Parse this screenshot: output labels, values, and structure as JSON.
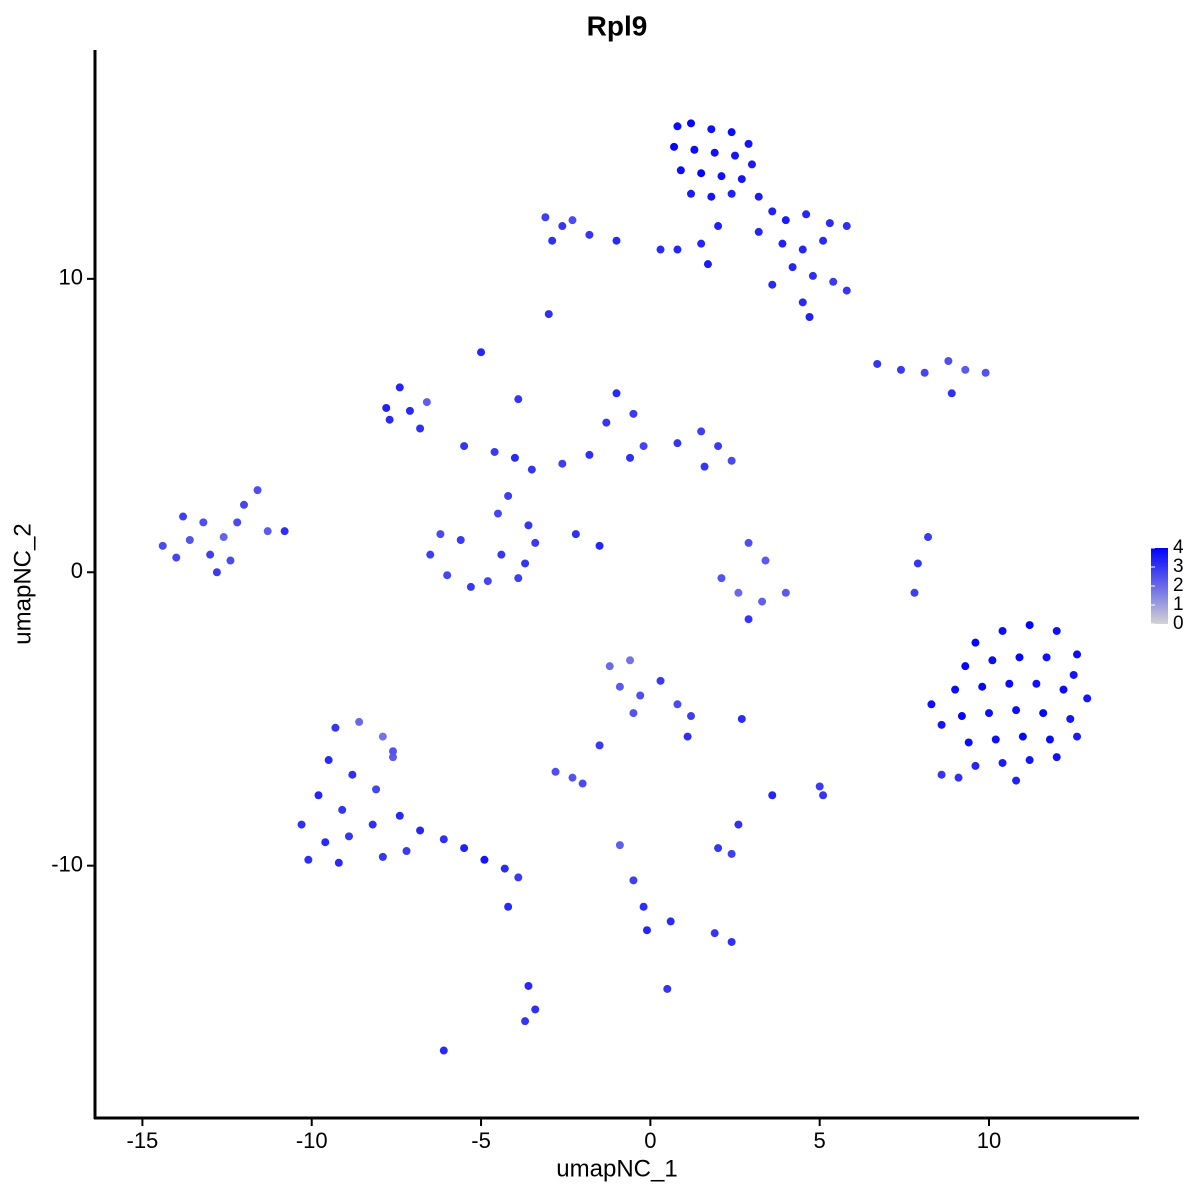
{
  "chart_data": {
    "type": "scatter",
    "title": "Rpl9",
    "x_label": "umapNC_1",
    "y_label": "umapNC_2",
    "xlim": [
      -16.4,
      14.4
    ],
    "ylim": [
      -18.6,
      17.8
    ],
    "xticks": [
      -15,
      -10,
      -5,
      0,
      5,
      10
    ],
    "yticks": [
      -10,
      0,
      10
    ],
    "colorbar": {
      "lim": [
        0,
        4
      ],
      "ticks": [
        0,
        1,
        2,
        3,
        4
      ],
      "low_color": "#d3d3d3",
      "high_color": "#0000ff"
    },
    "x": [
      0.8,
      1.2,
      1.8,
      2.4,
      2.9,
      0.7,
      1.3,
      1.9,
      2.5,
      3.0,
      0.9,
      1.5,
      2.1,
      2.7,
      1.2,
      1.8,
      2.4,
      3.2,
      3.6,
      4.0,
      4.6,
      5.3,
      5.8,
      3.9,
      4.5,
      5.1,
      4.2,
      4.8,
      5.4,
      5.8,
      4.5,
      4.7,
      3.6,
      3.2,
      2.0,
      1.5,
      0.8,
      0.3,
      1.7,
      -3.1,
      -2.6,
      -2.3,
      -2.9,
      -1.8,
      -1.0,
      -3.0,
      6.7,
      7.4,
      8.1,
      8.8,
      9.3,
      9.9,
      8.9,
      -7.4,
      -7.8,
      -7.1,
      -6.6,
      -6.8,
      -5.5,
      -4.6,
      -4.0,
      -3.5,
      -2.6,
      -1.8,
      -1.3,
      -1.0,
      -0.5,
      -0.2,
      0.8,
      1.5,
      2.0,
      2.4,
      1.6,
      -0.6,
      -7.7,
      -5.0,
      -3.9,
      -4.2,
      -4.5,
      -3.6,
      -3.4,
      -2.2,
      -1.5,
      -6.2,
      -6.5,
      -6.0,
      -5.3,
      -4.4,
      -3.9,
      -4.8,
      -3.7,
      -5.6,
      2.9,
      3.4,
      2.1,
      2.6,
      3.3,
      4.0,
      8.2,
      7.9,
      7.8,
      -14.4,
      -14.0,
      -13.6,
      -13.2,
      -13.0,
      -12.6,
      -12.2,
      -12.0,
      -11.6,
      -11.3,
      -12.8,
      -13.8,
      -12.4,
      -10.8,
      -1.2,
      -0.6,
      -0.9,
      -0.3,
      0.3,
      0.8,
      1.2,
      1.1,
      -0.5,
      -1.5,
      -2.8,
      -2.3,
      -2.0,
      2.7,
      2.0,
      2.4,
      2.6,
      3.6,
      5.0,
      5.1,
      -0.9,
      -0.5,
      -0.2,
      -0.1,
      0.6,
      1.9,
      2.4,
      0.5,
      -3.6,
      -3.4,
      -3.7,
      -6.1,
      2.9,
      -9.3,
      -8.6,
      -7.9,
      -7.6,
      -9.5,
      -8.8,
      -8.1,
      -9.8,
      -9.1,
      -10.3,
      -9.6,
      -8.9,
      -8.2,
      -7.4,
      -6.8,
      -6.1,
      -5.5,
      -4.9,
      -4.3,
      -3.9,
      -10.1,
      -9.2,
      -7.9,
      -7.2,
      -7.6,
      -4.2,
      9.6,
      10.4,
      11.2,
      12.0,
      12.6,
      9.3,
      10.1,
      10.9,
      11.7,
      12.5,
      9.0,
      9.8,
      10.6,
      11.4,
      12.2,
      12.9,
      9.2,
      10.0,
      10.8,
      11.6,
      12.4,
      9.4,
      10.2,
      11.0,
      11.8,
      12.6,
      9.6,
      10.4,
      11.2,
      12.0,
      8.6,
      9.1,
      10.8,
      8.3,
      8.6
    ],
    "y": [
      15.2,
      15.3,
      15.1,
      15.0,
      14.6,
      14.5,
      14.4,
      14.3,
      14.2,
      13.9,
      13.7,
      13.6,
      13.5,
      13.4,
      12.9,
      12.8,
      12.9,
      12.8,
      12.3,
      12.0,
      12.2,
      11.9,
      11.8,
      11.2,
      11.0,
      11.3,
      10.4,
      10.1,
      9.9,
      9.6,
      9.2,
      8.7,
      9.8,
      11.6,
      11.8,
      11.2,
      11.0,
      11.0,
      10.5,
      12.1,
      11.8,
      12.0,
      11.3,
      11.5,
      11.3,
      8.8,
      7.1,
      6.9,
      6.8,
      7.2,
      6.9,
      6.8,
      6.1,
      6.3,
      5.6,
      5.5,
      5.8,
      4.9,
      4.3,
      4.1,
      3.9,
      3.5,
      3.7,
      4.0,
      5.1,
      6.1,
      5.4,
      4.3,
      4.4,
      4.8,
      4.3,
      3.8,
      3.6,
      3.9,
      5.2,
      7.5,
      5.9,
      2.6,
      2.0,
      1.6,
      1.0,
      1.3,
      0.9,
      1.3,
      0.6,
      -0.1,
      -0.5,
      0.6,
      -0.2,
      -0.3,
      0.3,
      1.1,
      1.0,
      0.4,
      -0.2,
      -0.7,
      -1.0,
      -0.7,
      1.2,
      0.3,
      -0.7,
      0.9,
      0.5,
      1.1,
      1.7,
      0.6,
      1.2,
      1.7,
      2.3,
      2.8,
      1.4,
      0.0,
      1.9,
      0.4,
      1.4,
      -3.2,
      -3.0,
      -3.9,
      -4.2,
      -3.7,
      -4.5,
      -4.9,
      -5.6,
      -4.8,
      -5.9,
      -6.8,
      -7.0,
      -7.2,
      -5.0,
      -9.4,
      -9.6,
      -8.6,
      -7.6,
      -7.3,
      -7.6,
      -9.3,
      -10.5,
      -11.4,
      -12.2,
      -11.9,
      -12.3,
      -12.6,
      -14.2,
      -14.1,
      -14.9,
      -15.3,
      -16.3,
      -1.6,
      -5.3,
      -5.1,
      -5.6,
      -6.3,
      -6.4,
      -6.9,
      -7.4,
      -7.6,
      -8.1,
      -8.6,
      -9.2,
      -9.0,
      -8.6,
      -8.3,
      -8.8,
      -9.1,
      -9.4,
      -9.8,
      -10.1,
      -10.4,
      -9.8,
      -9.9,
      -9.7,
      -9.5,
      -6.1,
      -11.4,
      -2.4,
      -2.0,
      -1.8,
      -2.0,
      -2.8,
      -3.2,
      -3.0,
      -2.9,
      -2.9,
      -3.5,
      -4.0,
      -3.9,
      -3.8,
      -3.8,
      -4.0,
      -4.3,
      -4.9,
      -4.8,
      -4.7,
      -4.8,
      -5.0,
      -5.8,
      -5.7,
      -5.6,
      -5.7,
      -5.6,
      -6.6,
      -6.5,
      -6.4,
      -6.3,
      -6.9,
      -7.0,
      -7.1,
      -4.5,
      -5.2
    ],
    "values": [
      3.8,
      3.9,
      3.7,
      3.8,
      3.6,
      3.9,
      3.8,
      3.7,
      3.6,
      3.5,
      3.8,
      3.9,
      3.7,
      3.6,
      3.5,
      3.6,
      3.4,
      3.5,
      3.4,
      3.5,
      3.3,
      3.2,
      3.1,
      3.4,
      3.3,
      3.2,
      3.3,
      3.1,
      2.9,
      3.0,
      3.2,
      3.4,
      3.2,
      3.3,
      3.4,
      3.3,
      3.3,
      3.2,
      3.5,
      2.8,
      3.0,
      2.6,
      3.1,
      3.0,
      3.2,
      3.1,
      3.0,
      2.9,
      2.7,
      2.5,
      2.3,
      2.4,
      3.1,
      3.3,
      3.4,
      3.2,
      2.2,
      3.1,
      3.0,
      2.9,
      3.2,
      3.0,
      2.8,
      3.1,
      3.0,
      3.2,
      2.9,
      2.7,
      3.0,
      2.8,
      2.9,
      2.6,
      3.0,
      3.1,
      3.2,
      3.3,
      3.0,
      2.8,
      2.7,
      3.0,
      2.9,
      3.1,
      3.3,
      2.6,
      2.8,
      2.7,
      2.9,
      3.0,
      2.8,
      2.7,
      3.0,
      2.9,
      2.5,
      2.3,
      2.4,
      2.0,
      2.2,
      2.3,
      2.9,
      3.0,
      2.8,
      2.6,
      2.7,
      2.4,
      2.5,
      2.8,
      2.1,
      2.6,
      2.7,
      2.5,
      2.3,
      2.9,
      2.8,
      2.6,
      3.1,
      2.0,
      1.8,
      2.3,
      2.5,
      2.9,
      2.6,
      2.8,
      3.1,
      2.4,
      2.9,
      2.5,
      2.4,
      2.6,
      3.2,
      3.0,
      2.8,
      3.1,
      3.3,
      2.9,
      3.0,
      2.2,
      2.8,
      3.1,
      3.3,
      3.2,
      3.0,
      3.1,
      3.0,
      3.2,
      3.1,
      3.0,
      3.2,
      3.0,
      3.0,
      2.0,
      1.8,
      2.3,
      3.2,
      3.1,
      2.7,
      3.3,
      3.0,
      3.1,
      3.2,
      3.0,
      3.1,
      3.2,
      3.3,
      3.1,
      3.4,
      3.6,
      3.2,
      2.9,
      3.1,
      3.2,
      3.0,
      2.9,
      2.4,
      3.2,
      3.9,
      3.8,
      4.0,
      3.7,
      3.8,
      3.9,
      3.8,
      3.9,
      3.7,
      3.6,
      3.8,
      3.9,
      3.8,
      3.7,
      3.8,
      3.6,
      3.9,
      3.7,
      3.8,
      3.9,
      3.6,
      3.8,
      3.7,
      3.9,
      3.8,
      3.5,
      3.3,
      3.5,
      3.6,
      3.7,
      3.0,
      3.1,
      3.4,
      3.7,
      3.6
    ]
  }
}
